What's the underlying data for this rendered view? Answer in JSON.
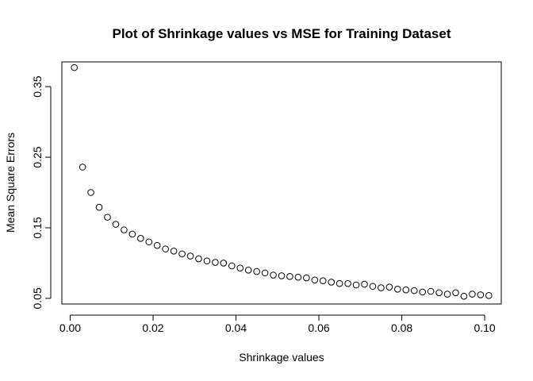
{
  "chart_data": {
    "type": "scatter",
    "title": "Plot of Shrinkage values vs MSE for Training Dataset",
    "xlabel": "Shrinkage values",
    "ylabel": "Mean Square Errors",
    "xlim": [
      -0.002,
      0.104
    ],
    "ylim": [
      0.042,
      0.385
    ],
    "x_ticks": [
      0.0,
      0.02,
      0.04,
      0.06,
      0.08,
      0.1
    ],
    "x_tick_labels": [
      "0.00",
      "0.02",
      "0.04",
      "0.06",
      "0.08",
      "0.10"
    ],
    "y_ticks": [
      0.05,
      0.15,
      0.25,
      0.35
    ],
    "y_tick_labels": [
      "0.05",
      "0.15",
      "0.25",
      "0.35"
    ],
    "grid": false,
    "point_color": "#000000",
    "x": [
      0.001,
      0.003,
      0.005,
      0.007,
      0.009,
      0.011,
      0.013,
      0.015,
      0.017,
      0.019,
      0.021,
      0.023,
      0.025,
      0.027,
      0.029,
      0.031,
      0.033,
      0.035,
      0.037,
      0.039,
      0.041,
      0.043,
      0.045,
      0.047,
      0.049,
      0.051,
      0.053,
      0.055,
      0.057,
      0.059,
      0.061,
      0.063,
      0.065,
      0.067,
      0.069,
      0.071,
      0.073,
      0.075,
      0.077,
      0.079,
      0.081,
      0.083,
      0.085,
      0.087,
      0.089,
      0.091,
      0.093,
      0.095,
      0.097,
      0.099,
      0.101
    ],
    "y": [
      0.377,
      0.236,
      0.2,
      0.179,
      0.165,
      0.155,
      0.147,
      0.141,
      0.135,
      0.13,
      0.125,
      0.12,
      0.117,
      0.113,
      0.11,
      0.106,
      0.103,
      0.101,
      0.1,
      0.096,
      0.093,
      0.09,
      0.088,
      0.086,
      0.083,
      0.082,
      0.081,
      0.08,
      0.079,
      0.076,
      0.075,
      0.073,
      0.071,
      0.071,
      0.069,
      0.07,
      0.067,
      0.065,
      0.066,
      0.063,
      0.062,
      0.061,
      0.059,
      0.06,
      0.058,
      0.056,
      0.058,
      0.053,
      0.056,
      0.055,
      0.054
    ]
  }
}
